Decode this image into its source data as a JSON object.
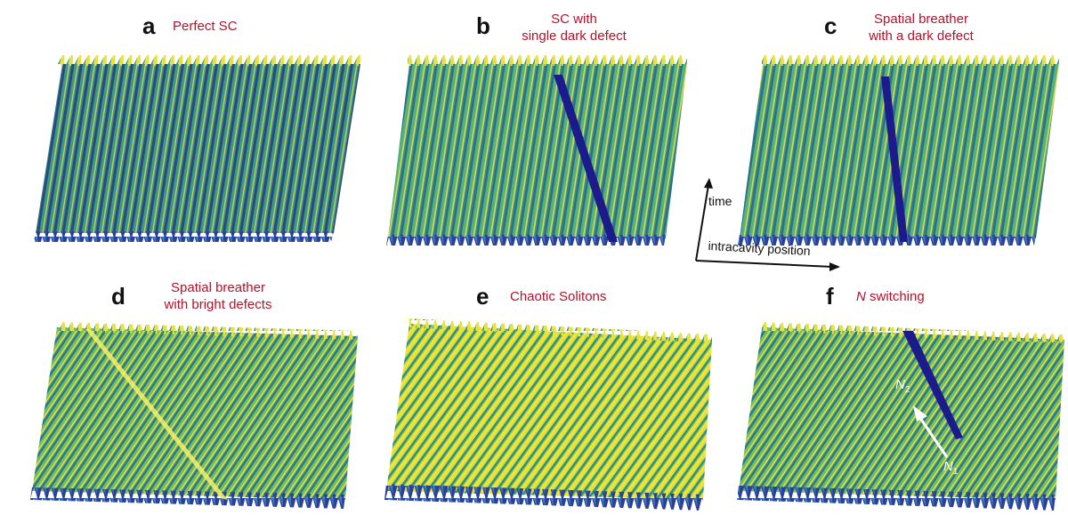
{
  "panels": [
    {
      "letter": "a",
      "title": "Perfect SC",
      "style": "perfect"
    },
    {
      "letter": "b",
      "title_line1": "SC with",
      "title_line2": "single dark defect",
      "style": "dark-defect-slanted"
    },
    {
      "letter": "c",
      "title_line1": "Spatial breather",
      "title_line2": "with a dark defect",
      "style": "dark-defect-vertical"
    },
    {
      "letter": "d",
      "title_line1": "Spatial breather",
      "title_line2": "with bright defects",
      "style": "bright-defect"
    },
    {
      "letter": "e",
      "title": "Chaotic Solitons",
      "style": "chaotic"
    },
    {
      "letter": "f",
      "title_italic": "N",
      "title_rest": " switching",
      "style": "switching"
    }
  ],
  "axes": {
    "vertical": "time",
    "horizontal": "intracavity position"
  },
  "switching_labels": {
    "n2": "N",
    "n2_sub": "2",
    "n1": "N",
    "n1_sub": "1"
  },
  "colors": {
    "title": "#b3122a",
    "yellow": "#f4e43a",
    "teal": "#2f8f8a",
    "navy": "#2a3a86",
    "dark_blue": "#1b1a8a"
  }
}
